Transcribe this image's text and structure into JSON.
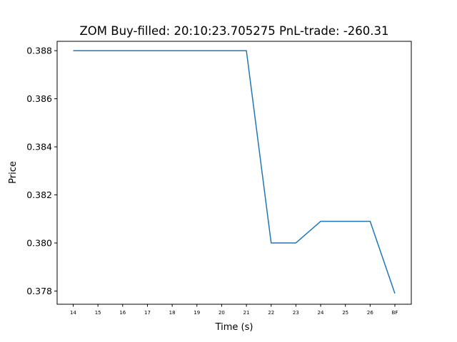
{
  "chart_data": {
    "type": "line",
    "title": "ZOM  Buy-filled:  20:10:23.705275  PnL-trade:  -260.31",
    "xlabel": "Time (s)",
    "ylabel": "Price",
    "categories": [
      "14",
      "15",
      "16",
      "17",
      "18",
      "19",
      "20",
      "21",
      "22",
      "23",
      "24",
      "25",
      "26",
      "BF"
    ],
    "yticks": [
      0.378,
      0.38,
      0.382,
      0.384,
      0.386,
      0.388
    ],
    "ytick_labels": [
      "0.378",
      "0.380",
      "0.382",
      "0.384",
      "0.386",
      "0.388"
    ],
    "ylim": [
      0.37745,
      0.38839
    ],
    "series": [
      {
        "values": [
          0.388,
          0.388,
          0.388,
          0.388,
          0.388,
          0.388,
          0.388,
          0.388,
          0.38,
          0.38,
          0.3809,
          0.3809,
          0.3809,
          0.3779
        ],
        "color": "#1f77b4"
      }
    ],
    "grid": false,
    "legend": "none"
  }
}
